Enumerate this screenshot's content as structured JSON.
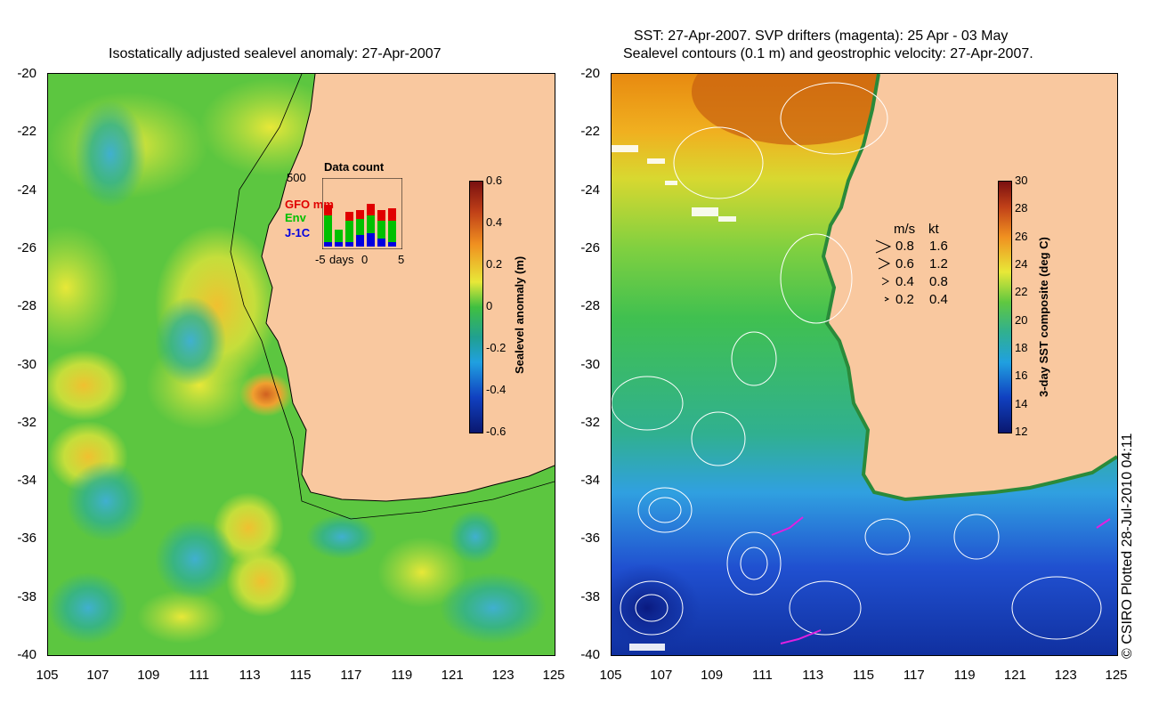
{
  "left_map": {
    "title": "Isostatically adjusted sealevel anomaly: 27-Apr-2007",
    "colorbar": {
      "label": "Sealevel anomaly (m)",
      "ticks": [
        "0.6",
        "0.4",
        "0.2",
        "0",
        "-0.2",
        "-0.4",
        "-0.6"
      ]
    },
    "inset": {
      "title": "Data count",
      "ymax": "500",
      "legend": [
        {
          "name": "GFO mm",
          "color": "#e00000"
        },
        {
          "name": "Env",
          "color": "#00c000"
        },
        {
          "name": "J-1C",
          "color": "#0000e0"
        }
      ],
      "xlabels": [
        "-5",
        "days",
        "0",
        "5"
      ]
    }
  },
  "right_map": {
    "title_line1": "SST: 27-Apr-2007. SVP drifters (magenta): 25 Apr - 03 May",
    "title_line2": "Sealevel contours (0.1 m) and geostrophic velocity: 27-Apr-2007.",
    "colorbar": {
      "label": "3-day SST composite (deg C)",
      "ticks": [
        "30",
        "28",
        "26",
        "24",
        "22",
        "20",
        "18",
        "16",
        "14",
        "12"
      ]
    },
    "velocity_legend": {
      "header_ms": "m/s",
      "header_kt": "kt",
      "rows": [
        {
          "ms": "0.8",
          "kt": "1.6"
        },
        {
          "ms": "0.6",
          "kt": "1.2"
        },
        {
          "ms": "0.4",
          "kt": "0.8"
        },
        {
          "ms": "0.2",
          "kt": "0.4"
        }
      ]
    }
  },
  "axes": {
    "y_ticks": [
      "-20",
      "-22",
      "-24",
      "-26",
      "-28",
      "-30",
      "-32",
      "-34",
      "-36",
      "-38",
      "-40"
    ],
    "x_ticks": [
      "105",
      "107",
      "109",
      "111",
      "113",
      "115",
      "117",
      "119",
      "121",
      "123",
      "125"
    ]
  },
  "credit": "© CSIRO Plotted 28-Jul-2010 04:11",
  "colors": {
    "land": "#f9c89f",
    "ocean_mid": "#3fbf3f",
    "ocean_warm": "#d8e63a",
    "ocean_cool": "#2aa79a"
  }
}
